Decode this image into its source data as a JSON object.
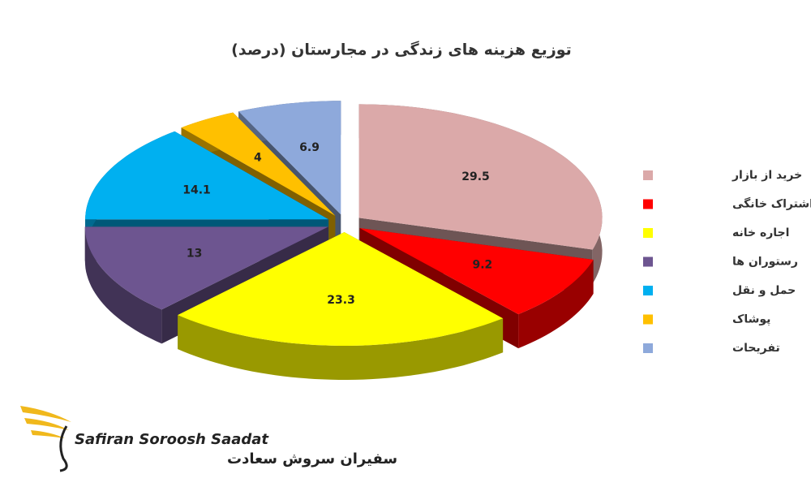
{
  "chart_data": {
    "type": "pie",
    "title": "توزیع هزینه های زندگی در مجارستان (درصد)",
    "categories": [
      "خرید از بازار",
      "اشتراک خانگی",
      "اجاره خانه",
      "رستوران ها",
      "حمل و نقل",
      "پوشاک",
      "تفریحات"
    ],
    "values": [
      29.5,
      9.2,
      23.3,
      13,
      14.1,
      4,
      6.9
    ],
    "colors": [
      "#dba9a9",
      "#ff0000",
      "#ffff00",
      "#6d5590",
      "#00b0f0",
      "#ffc000",
      "#8ea9db"
    ],
    "legend": "right"
  },
  "logo": {
    "latin": "Safiran Soroosh Saadat",
    "persian": "سفیران سروش سعادت"
  }
}
